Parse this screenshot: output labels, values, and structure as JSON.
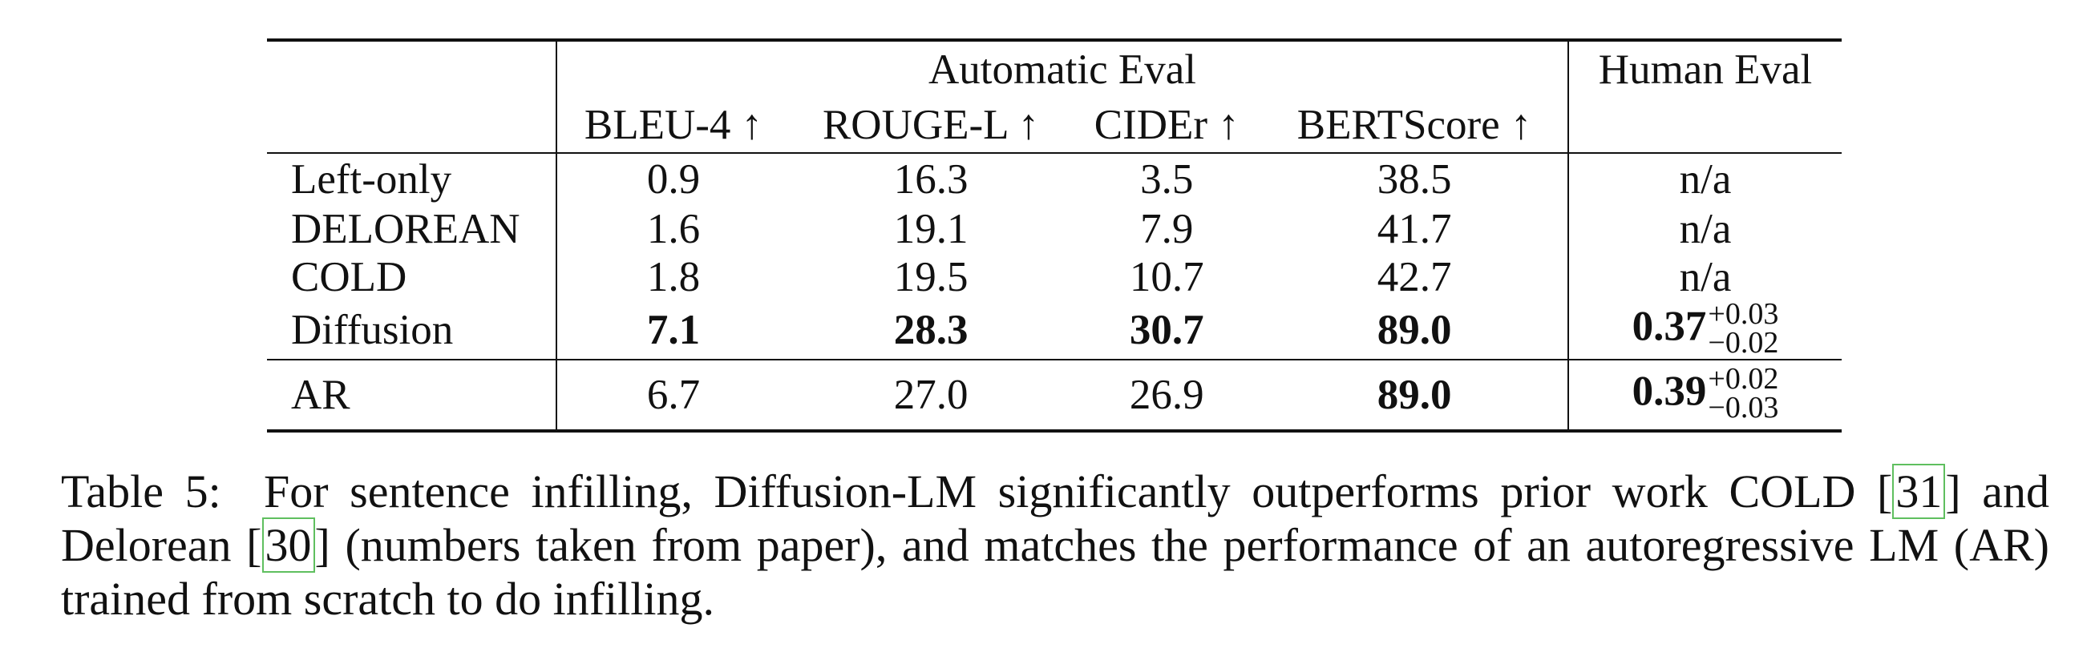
{
  "table": {
    "group_headers": {
      "automatic": "Automatic Eval",
      "human": "Human Eval"
    },
    "metric_headers": [
      "BLEU-4 ↑",
      "ROUGE-L ↑",
      "CIDEr ↑",
      "BERTScore ↑"
    ],
    "rows": [
      {
        "method": "Left-only",
        "bleu": "0.9",
        "rouge": "16.3",
        "cider": "3.5",
        "bertscore": "38.5",
        "human": "n/a"
      },
      {
        "method": "DELOREAN",
        "bleu": "1.6",
        "rouge": "19.1",
        "cider": "7.9",
        "bertscore": "41.7",
        "human": "n/a"
      },
      {
        "method": "COLD",
        "bleu": "1.8",
        "rouge": "19.5",
        "cider": "10.7",
        "bertscore": "42.7",
        "human": "n/a"
      },
      {
        "method": "Diffusion",
        "bleu": "7.1",
        "rouge": "28.3",
        "cider": "30.7",
        "bertscore": "89.0",
        "human": "0.37",
        "human_sup": "+0.03",
        "human_sub": "−0.02"
      }
    ],
    "ar_row": {
      "method": "AR",
      "bleu": "6.7",
      "rouge": "27.0",
      "cider": "26.9",
      "bertscore": "89.0",
      "human": "0.39",
      "human_sup": "+0.02",
      "human_sub": "−0.03"
    }
  },
  "caption": {
    "label": "Table 5:",
    "part1": "For sentence infilling, Diffusion-LM significantly outperforms prior work COLD [",
    "cite1": "31",
    "part2": "] and Delorean [",
    "cite2": "30",
    "part3": "] (numbers taken from paper), and matches the performance of an autoregressive LM (AR) trained from scratch to do infilling."
  }
}
